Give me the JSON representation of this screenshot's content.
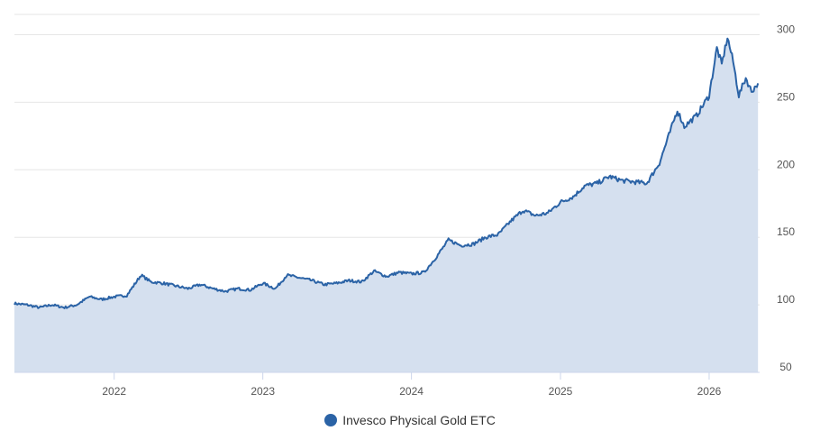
{
  "chart_data": {
    "type": "area",
    "series": [
      {
        "name": "Invesco Physical Gold ETC",
        "color": "#2b63a6",
        "fill": "#d5e0ef",
        "x": [
          "2021-05-01",
          "2021-06-01",
          "2021-07-01",
          "2021-08-01",
          "2021-09-01",
          "2021-10-01",
          "2021-11-01",
          "2021-12-01",
          "2022-01-01",
          "2022-02-01",
          "2022-03-08",
          "2022-04-01",
          "2022-05-01",
          "2022-06-01",
          "2022-07-01",
          "2022-08-01",
          "2022-09-01",
          "2022-10-01",
          "2022-11-01",
          "2022-12-01",
          "2023-01-01",
          "2023-02-01",
          "2023-03-01",
          "2023-04-01",
          "2023-05-01",
          "2023-06-01",
          "2023-07-01",
          "2023-08-01",
          "2023-09-01",
          "2023-10-01",
          "2023-11-01",
          "2023-12-01",
          "2024-01-01",
          "2024-02-01",
          "2024-03-01",
          "2024-04-01",
          "2024-05-01",
          "2024-06-01",
          "2024-07-01",
          "2024-08-01",
          "2024-09-01",
          "2024-10-01",
          "2024-11-01",
          "2024-12-01",
          "2025-01-01",
          "2025-02-01",
          "2025-03-01",
          "2025-04-01",
          "2025-05-01",
          "2025-06-01",
          "2025-07-01",
          "2025-08-01",
          "2025-09-01",
          "2025-10-15",
          "2025-11-01",
          "2025-12-01",
          "2026-01-01",
          "2026-01-20",
          "2026-02-01",
          "2026-02-15",
          "2026-03-01",
          "2026-03-15",
          "2026-04-01",
          "2026-04-15",
          "2026-05-01"
        ],
        "y": [
          101,
          100,
          98,
          100,
          98,
          100,
          106,
          104,
          106,
          107,
          122,
          117,
          116,
          114,
          112,
          115,
          112,
          110,
          112,
          111,
          116,
          112,
          122,
          120,
          118,
          115,
          116,
          118,
          117,
          125,
          121,
          124,
          123,
          124,
          135,
          148,
          144,
          145,
          150,
          152,
          162,
          170,
          166,
          168,
          176,
          180,
          188,
          190,
          195,
          192,
          191,
          190,
          205,
          244,
          232,
          240,
          255,
          290,
          278,
          298,
          280,
          255,
          268,
          258,
          264
        ]
      }
    ],
    "xticks": [
      "2022",
      "2023",
      "2024",
      "2025",
      "2026"
    ],
    "yticks": [
      50,
      100,
      150,
      200,
      250,
      300
    ],
    "xlim": [
      "2021-05-01",
      "2026-05-05"
    ],
    "ylim": [
      50,
      315
    ],
    "grid": true,
    "legend": "bottom-center"
  }
}
